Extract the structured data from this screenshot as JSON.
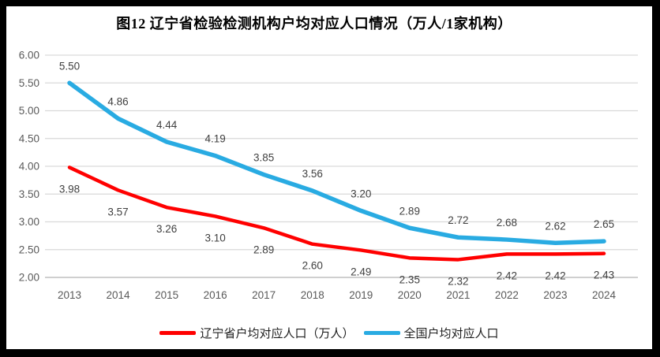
{
  "title": "图12 辽宁省检验检测机构户均对应人口情况（万人/1家机构）",
  "chart_data": {
    "type": "line",
    "categories": [
      "2013",
      "2014",
      "2015",
      "2016",
      "2017",
      "2018",
      "2019",
      "2020",
      "2021",
      "2022",
      "2023",
      "2024"
    ],
    "series": [
      {
        "name": "辽宁省户均对应人口（万人）",
        "color": "#FF0000",
        "stroke_width": 4.5,
        "label_position": "below",
        "values": [
          3.98,
          3.57,
          3.26,
          3.1,
          2.89,
          2.6,
          2.49,
          2.35,
          2.32,
          2.42,
          2.42,
          2.43
        ]
      },
      {
        "name": "全国户均对应人口",
        "color": "#29ABE2",
        "stroke_width": 5.5,
        "label_position": "above",
        "values": [
          5.5,
          4.86,
          4.44,
          4.19,
          3.85,
          3.56,
          3.2,
          2.89,
          2.72,
          2.68,
          2.62,
          2.65
        ]
      }
    ],
    "ylim": [
      2.0,
      6.0
    ],
    "yticks": [
      "6.00",
      "5.50",
      "5.00",
      "4.50",
      "4.00",
      "3.50",
      "3.00",
      "2.50",
      "2.00"
    ],
    "grid": true,
    "legend_position": "bottom",
    "colors": {
      "gridline": "#D9D9D9",
      "axis_line": "#BFBFBF",
      "tick_label": "#595959",
      "data_label": "#404040"
    }
  }
}
